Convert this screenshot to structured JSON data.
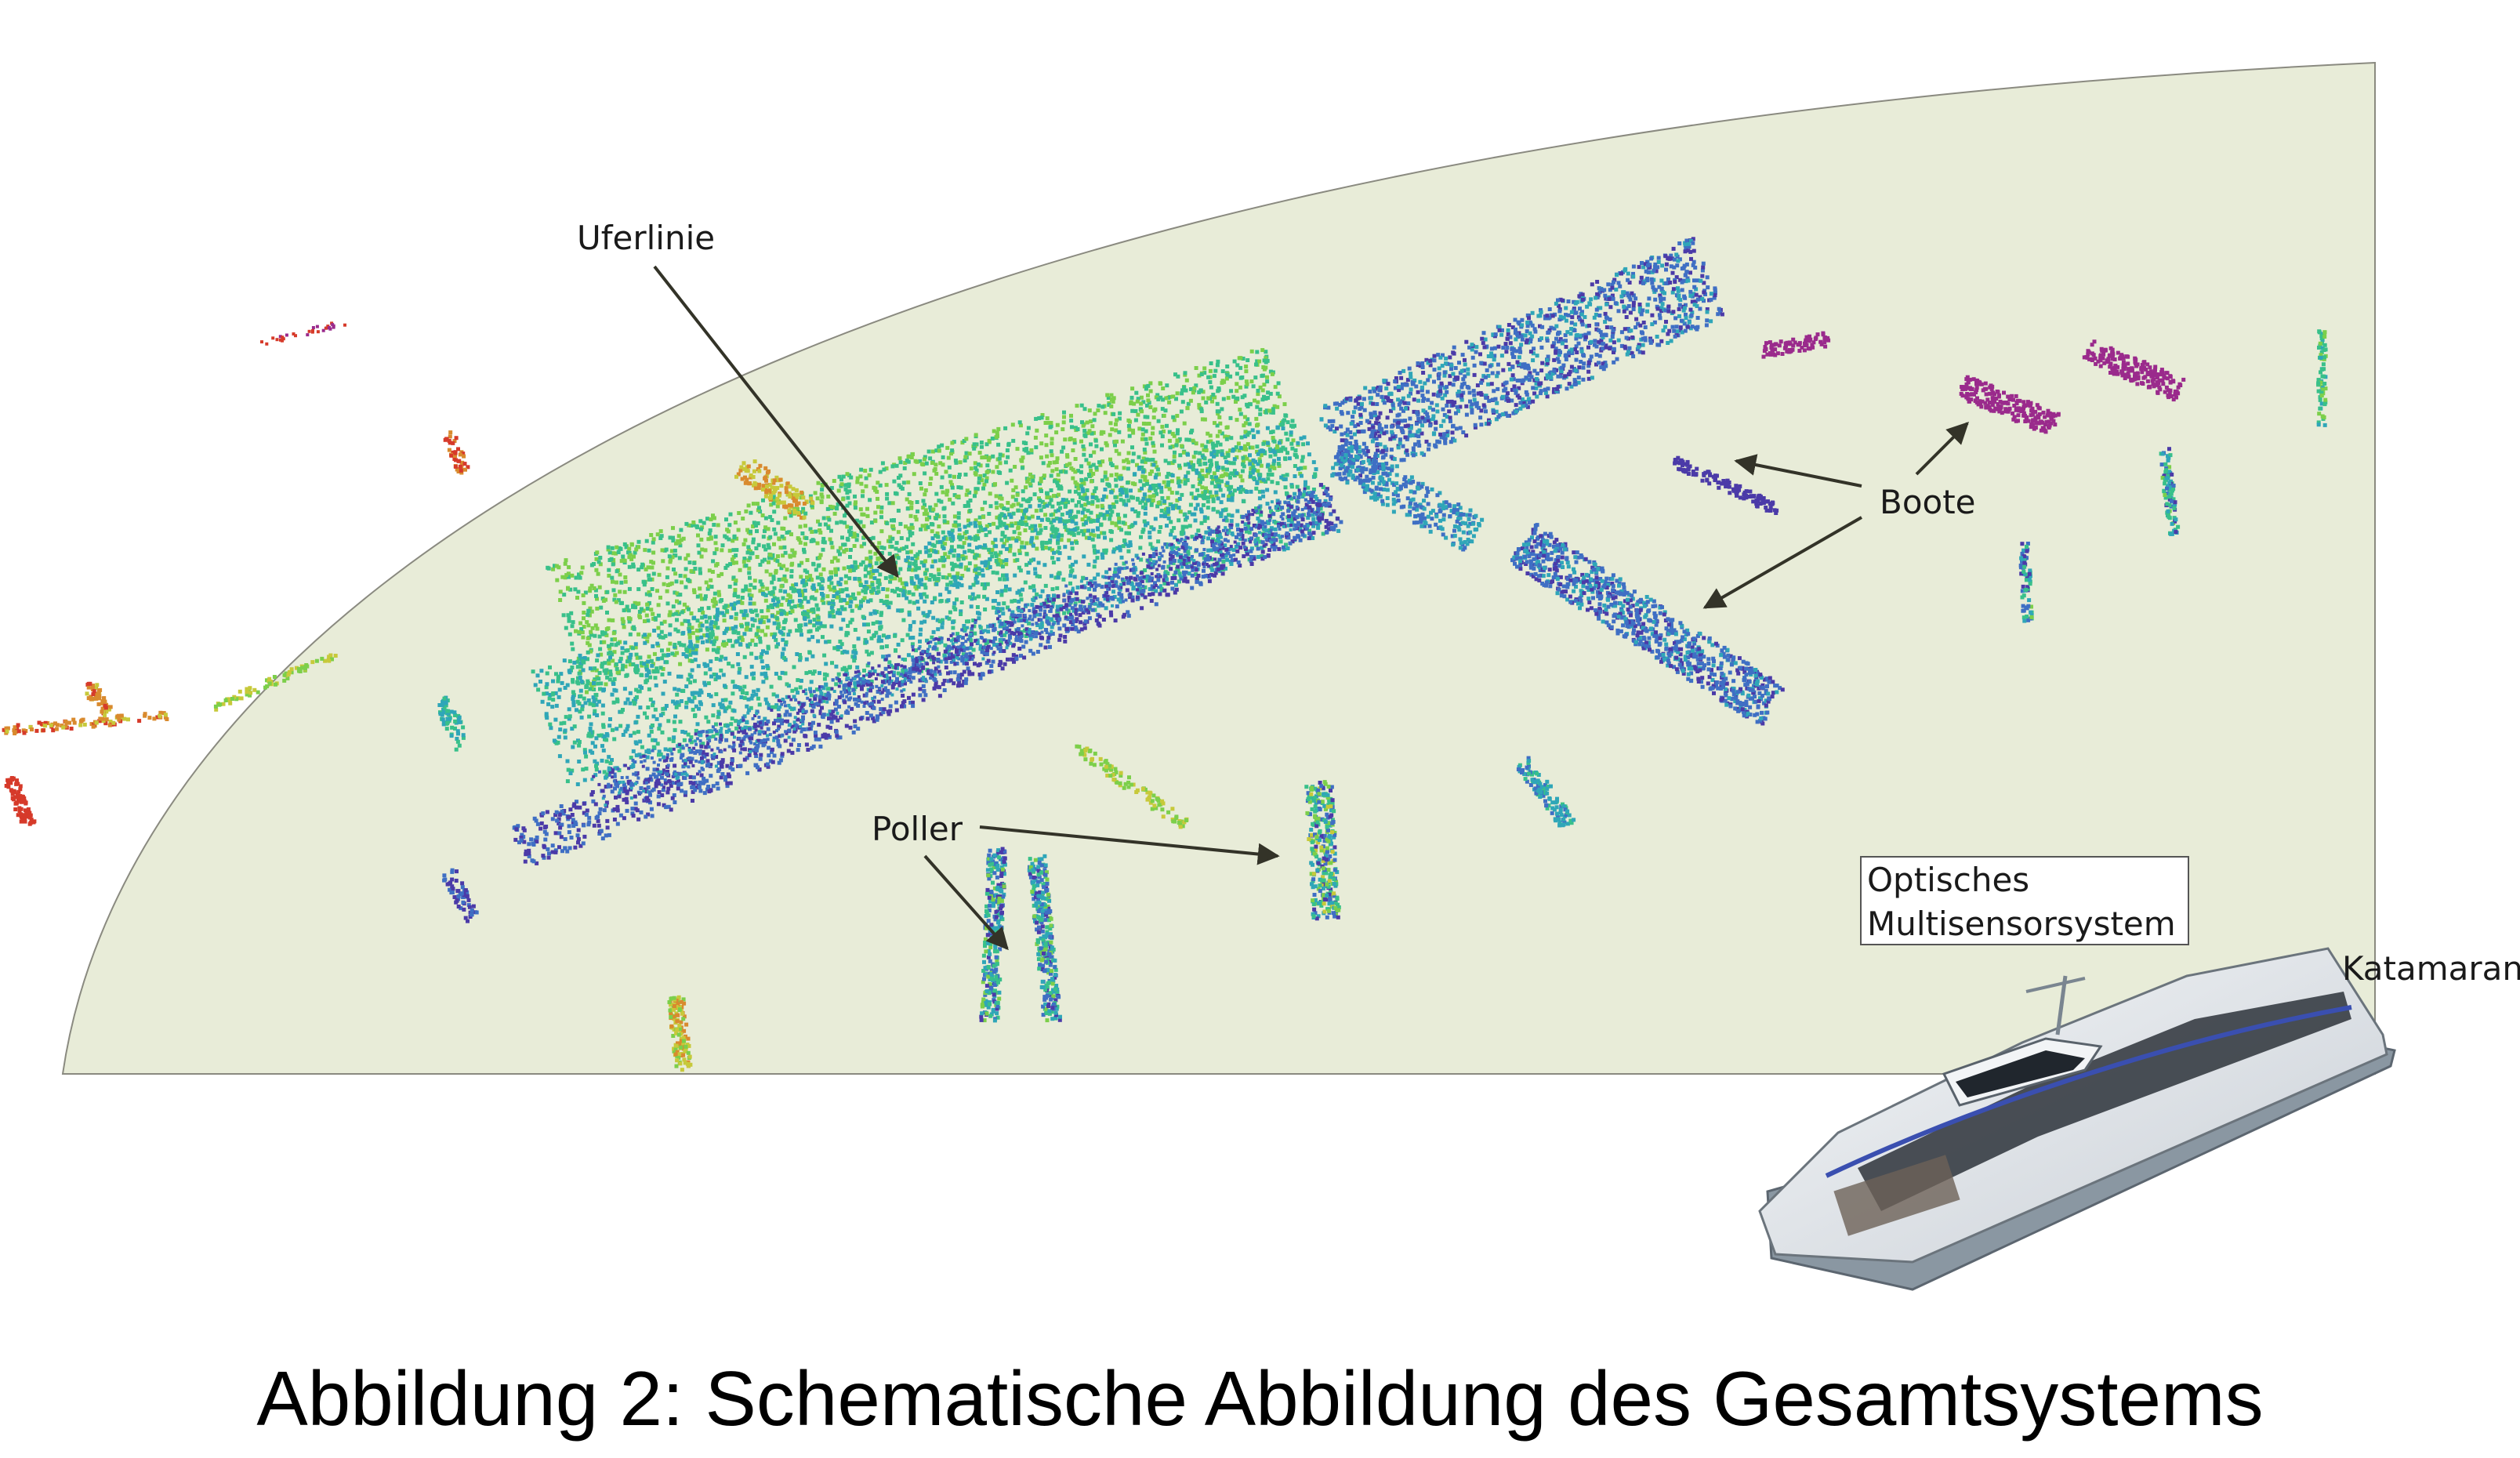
{
  "labels": {
    "uferlinie": "Uferlinie",
    "boote": "Boote",
    "poller": "Poller",
    "sensor_line1": "Optisches",
    "sensor_line2": "Multisensorsystem",
    "katamaran": "Katamaran"
  },
  "caption": "Abbildung 2: Schematische Abbildung des Gesamtsystems",
  "colors": {
    "field_fill": "#e8ecd8",
    "field_stroke": "#8a8a80",
    "arrow": "#333328",
    "point_palette": [
      "#4b3aa8",
      "#3f6fc4",
      "#2fa6b8",
      "#38c08a",
      "#7ccf4a",
      "#c7c93a",
      "#d98a2e",
      "#d63a2a",
      "#9a2a8c"
    ]
  },
  "point_cloud_height_colormap": "viridis-to-red"
}
